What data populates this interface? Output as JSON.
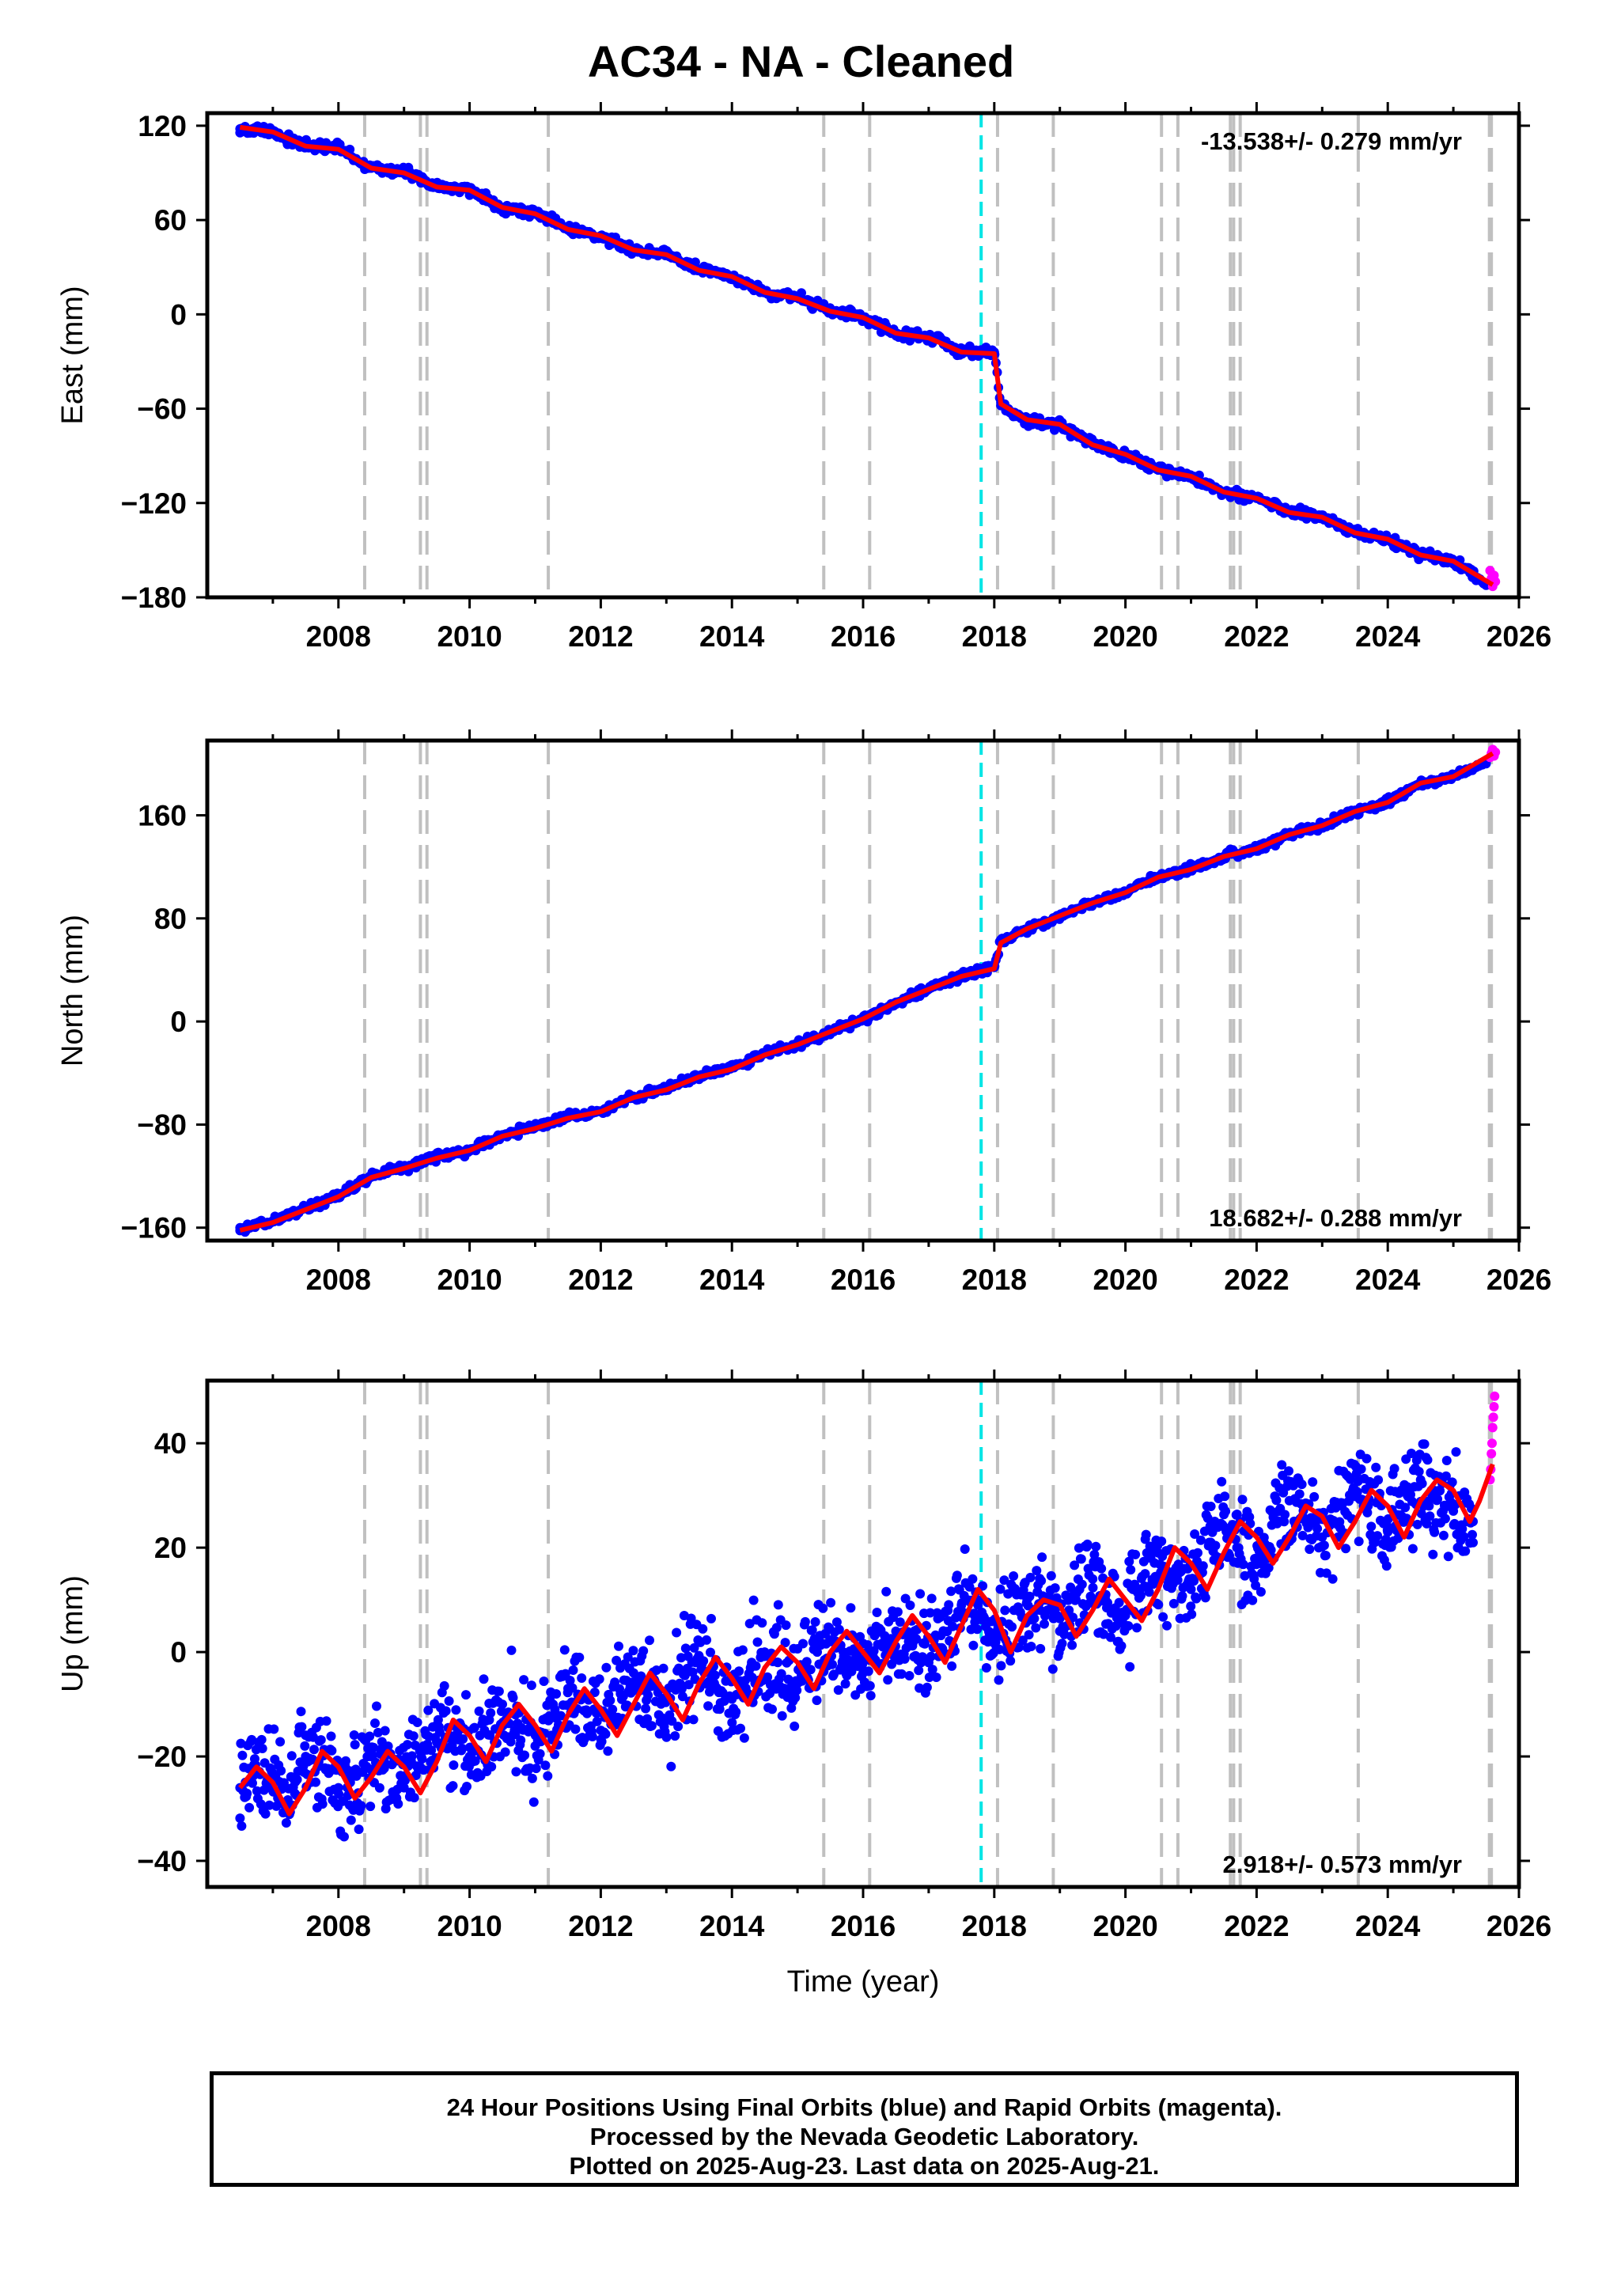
{
  "title": "AC34  - NA - Cleaned",
  "time_label": "Time (year)",
  "footer": [
    "24 Hour Positions Using Final Orbits (blue) and Rapid Orbits (magenta).",
    "Processed by the Nevada Geodetic Laboratory.",
    "Plotted on 2025-Aug-23. Last data on 2025-Aug-21."
  ],
  "colors": {
    "final_orbits": "#0000ff",
    "rapid_orbits": "#ff00ff",
    "model": "#ff0000",
    "equipment_change": "#c0c0c0",
    "earthquake": "#00e5e5"
  },
  "chart_data": [
    {
      "type": "scatter",
      "panel": "east",
      "ylabel": "East (mm)",
      "rate_text": "-13.538+/- 0.279 mm/yr",
      "rate_position": "top-right",
      "xlim": [
        2006.0,
        2026.0
      ],
      "ylim": [
        -180,
        128
      ],
      "xticks": [
        2008,
        2010,
        2012,
        2014,
        2016,
        2018,
        2020,
        2022,
        2024,
        2026
      ],
      "yticks": [
        -180,
        -120,
        -60,
        0,
        60,
        120
      ],
      "ytick_labels": [
        "−180",
        "−120",
        "−60",
        "0",
        "60",
        "120"
      ],
      "series": [
        {
          "role": "final_orbits",
          "x": [
            2006.5,
            2007.0,
            2007.5,
            2008.0,
            2008.5,
            2009.0,
            2009.5,
            2010.0,
            2010.5,
            2011.0,
            2011.5,
            2012.0,
            2012.5,
            2013.0,
            2013.5,
            2014.0,
            2014.5,
            2015.0,
            2015.5,
            2016.0,
            2016.5,
            2017.0,
            2017.5,
            2018.0,
            2018.1,
            2018.5,
            2019.0,
            2019.5,
            2020.0,
            2020.5,
            2021.0,
            2021.5,
            2022.0,
            2022.5,
            2023.0,
            2023.5,
            2024.0,
            2024.5,
            2025.0,
            2025.5
          ],
          "y": [
            118,
            116,
            107,
            106,
            93,
            91,
            81,
            79,
            68,
            65,
            54,
            50,
            41,
            39,
            28,
            24,
            14,
            11,
            2,
            -2,
            -12,
            -14,
            -24,
            -24,
            -58,
            -68,
            -70,
            -83,
            -89,
            -99,
            -103,
            -113,
            -117,
            -126,
            -129,
            -139,
            -143,
            -153,
            -157,
            -171
          ]
        },
        {
          "role": "rapid_orbits",
          "x": [
            2025.56,
            2025.58,
            2025.6,
            2025.62,
            2025.64
          ],
          "y": [
            -163,
            -168,
            -173,
            -166,
            -170
          ]
        },
        {
          "role": "model",
          "x": [
            2006.5,
            2007.0,
            2007.5,
            2008.0,
            2008.5,
            2009.0,
            2009.5,
            2010.0,
            2010.5,
            2011.0,
            2011.5,
            2012.0,
            2012.5,
            2013.0,
            2013.5,
            2014.0,
            2014.5,
            2015.0,
            2015.5,
            2016.0,
            2016.5,
            2017.0,
            2017.5,
            2018.0,
            2018.1,
            2018.5,
            2019.0,
            2019.5,
            2020.0,
            2020.5,
            2021.0,
            2021.5,
            2022.0,
            2022.5,
            2023.0,
            2023.5,
            2024.0,
            2024.5,
            2025.0,
            2025.6
          ],
          "y": [
            119,
            116,
            107,
            105,
            93,
            90,
            81,
            79,
            68,
            64,
            54,
            50,
            41,
            38,
            28,
            24,
            14,
            10,
            2,
            -2,
            -12,
            -15,
            -24,
            -25,
            -57,
            -67,
            -70,
            -83,
            -89,
            -99,
            -103,
            -113,
            -117,
            -126,
            -129,
            -139,
            -143,
            -153,
            -157,
            -172
          ]
        }
      ]
    },
    {
      "type": "scatter",
      "panel": "north",
      "ylabel": "North (mm)",
      "rate_text": "18.682+/- 0.288 mm/yr",
      "rate_position": "bottom-right",
      "xlim": [
        2006.0,
        2026.0
      ],
      "ylim": [
        -170,
        218
      ],
      "xticks": [
        2008,
        2010,
        2012,
        2014,
        2016,
        2018,
        2020,
        2022,
        2024,
        2026
      ],
      "yticks": [
        -160,
        -80,
        0,
        80,
        160
      ],
      "ytick_labels": [
        "−160",
        "−80",
        "0",
        "80",
        "160"
      ],
      "series": [
        {
          "role": "final_orbits",
          "x": [
            2006.5,
            2007.0,
            2007.5,
            2008.0,
            2008.5,
            2009.0,
            2009.5,
            2010.0,
            2010.5,
            2011.0,
            2011.5,
            2012.0,
            2012.5,
            2013.0,
            2013.5,
            2014.0,
            2014.5,
            2015.0,
            2015.5,
            2016.0,
            2016.5,
            2017.0,
            2017.5,
            2018.0,
            2018.1,
            2018.5,
            2019.0,
            2019.5,
            2020.0,
            2020.5,
            2021.0,
            2021.5,
            2022.0,
            2022.5,
            2023.0,
            2023.5,
            2024.0,
            2024.5,
            2025.0,
            2025.5
          ],
          "y": [
            -160,
            -155,
            -145,
            -135,
            -120,
            -113,
            -105,
            -100,
            -88,
            -82,
            -74,
            -70,
            -58,
            -52,
            -42,
            -36,
            -25,
            -18,
            -8,
            2,
            15,
            25,
            35,
            42,
            62,
            72,
            82,
            92,
            100,
            112,
            118,
            128,
            134,
            145,
            152,
            163,
            170,
            185,
            190,
            200
          ]
        },
        {
          "role": "rapid_orbits",
          "x": [
            2025.56,
            2025.58,
            2025.6,
            2025.62,
            2025.64
          ],
          "y": [
            205,
            208,
            211,
            206,
            209
          ]
        },
        {
          "role": "model",
          "x": [
            2006.5,
            2007.0,
            2007.5,
            2008.0,
            2008.5,
            2009.0,
            2009.5,
            2010.0,
            2010.5,
            2011.0,
            2011.5,
            2012.0,
            2012.5,
            2013.0,
            2013.5,
            2014.0,
            2014.5,
            2015.0,
            2015.5,
            2016.0,
            2016.5,
            2017.0,
            2017.5,
            2018.0,
            2018.1,
            2018.5,
            2019.0,
            2019.5,
            2020.0,
            2020.5,
            2021.0,
            2021.5,
            2022.0,
            2022.5,
            2023.0,
            2023.5,
            2024.0,
            2024.5,
            2025.0,
            2025.6
          ],
          "y": [
            -162,
            -156,
            -146,
            -136,
            -121,
            -114,
            -106,
            -100,
            -89,
            -83,
            -75,
            -70,
            -59,
            -53,
            -43,
            -37,
            -26,
            -18,
            -8,
            2,
            15,
            25,
            35,
            41,
            61,
            72,
            82,
            92,
            100,
            112,
            118,
            128,
            134,
            145,
            152,
            163,
            170,
            185,
            190,
            208
          ]
        }
      ]
    },
    {
      "type": "scatter",
      "panel": "up",
      "ylabel": "Up (mm)",
      "xlabel": "Time (year)",
      "rate_text": "2.918+/- 0.573 mm/yr",
      "rate_position": "bottom-right",
      "xlim": [
        2006.0,
        2026.0
      ],
      "ylim": [
        -45,
        52
      ],
      "xticks": [
        2008,
        2010,
        2012,
        2014,
        2016,
        2018,
        2020,
        2022,
        2024,
        2026
      ],
      "yticks": [
        -40,
        -20,
        0,
        20,
        40
      ],
      "ytick_labels": [
        "−40",
        "−20",
        "0",
        "20",
        "40"
      ],
      "series": [
        {
          "role": "final_orbits",
          "x": [
            2006.5,
            2006.7,
            2007.0,
            2007.2,
            2007.5,
            2007.7,
            2008.0,
            2008.3,
            2008.5,
            2008.7,
            2009.0,
            2009.3,
            2009.5,
            2009.7,
            2010.0,
            2010.3,
            2010.5,
            2010.7,
            2011.0,
            2011.3,
            2011.5,
            2011.7,
            2012.0,
            2012.3,
            2012.5,
            2012.7,
            2013.0,
            2013.3,
            2013.5,
            2013.7,
            2014.0,
            2014.3,
            2014.5,
            2014.7,
            2015.0,
            2015.3,
            2015.5,
            2015.7,
            2016.0,
            2016.3,
            2016.5,
            2016.7,
            2017.0,
            2017.3,
            2017.5,
            2017.7,
            2018.0,
            2018.3,
            2018.5,
            2018.7,
            2019.0,
            2019.3,
            2019.5,
            2019.7,
            2020.0,
            2020.3,
            2020.5,
            2020.7,
            2021.0,
            2021.3,
            2021.5,
            2021.7,
            2022.0,
            2022.3,
            2022.5,
            2022.7,
            2023.0,
            2023.3,
            2023.5,
            2023.7,
            2024.0,
            2024.3,
            2024.5,
            2024.7,
            2025.0,
            2025.3
          ],
          "y": [
            -26,
            -22,
            -24,
            -30,
            -20,
            -21,
            -26,
            -27,
            -20,
            -21,
            -26,
            -18,
            -14,
            -16,
            -20,
            -13,
            -10,
            -12,
            -18,
            -11,
            -7,
            -9,
            -15,
            -8,
            -4,
            -7,
            -13,
            -4,
            -1,
            -3,
            -9,
            -2,
            0,
            -2,
            -6,
            0,
            2,
            0,
            -4,
            1,
            4,
            2,
            -2,
            6,
            9,
            7,
            3,
            8,
            10,
            8,
            4,
            12,
            14,
            11,
            7,
            15,
            19,
            15,
            12,
            21,
            24,
            20,
            17,
            25,
            29,
            26,
            22,
            28,
            31,
            28,
            23,
            30,
            33,
            31,
            27,
            25
          ]
        },
        {
          "role": "rapid_orbits",
          "x": [
            2025.56,
            2025.57,
            2025.58,
            2025.59,
            2025.6,
            2025.61,
            2025.62,
            2025.63
          ],
          "y": [
            33,
            35,
            38,
            40,
            43,
            45,
            47,
            49
          ]
        },
        {
          "role": "model",
          "x": [
            2006.5,
            2006.75,
            2007.0,
            2007.25,
            2007.5,
            2007.75,
            2008.0,
            2008.25,
            2008.5,
            2008.75,
            2009.0,
            2009.25,
            2009.5,
            2009.75,
            2010.0,
            2010.25,
            2010.5,
            2010.75,
            2011.0,
            2011.25,
            2011.5,
            2011.75,
            2012.0,
            2012.25,
            2012.5,
            2012.75,
            2013.0,
            2013.25,
            2013.5,
            2013.75,
            2014.0,
            2014.25,
            2014.5,
            2014.75,
            2015.0,
            2015.25,
            2015.5,
            2015.75,
            2016.0,
            2016.25,
            2016.5,
            2016.75,
            2017.0,
            2017.25,
            2017.5,
            2017.75,
            2018.0,
            2018.25,
            2018.5,
            2018.75,
            2019.0,
            2019.25,
            2019.5,
            2019.75,
            2020.0,
            2020.25,
            2020.5,
            2020.75,
            2021.0,
            2021.25,
            2021.5,
            2021.75,
            2022.0,
            2022.25,
            2022.5,
            2022.75,
            2023.0,
            2023.25,
            2023.5,
            2023.75,
            2024.0,
            2024.25,
            2024.5,
            2024.75,
            2025.0,
            2025.25,
            2025.4,
            2025.6
          ],
          "y": [
            -26,
            -22,
            -25,
            -31,
            -26,
            -19,
            -22,
            -28,
            -24,
            -19,
            -22,
            -27,
            -21,
            -13,
            -16,
            -21,
            -14,
            -10,
            -14,
            -19,
            -12,
            -7,
            -11,
            -16,
            -10,
            -4,
            -8,
            -13,
            -6,
            -1,
            -5,
            -10,
            -3,
            1,
            -2,
            -7,
            0,
            4,
            0,
            -4,
            2,
            7,
            3,
            -2,
            5,
            12,
            8,
            0,
            7,
            10,
            9,
            3,
            8,
            14,
            10,
            6,
            12,
            20,
            17,
            12,
            19,
            25,
            22,
            17,
            22,
            28,
            26,
            20,
            25,
            31,
            28,
            22,
            29,
            33,
            31,
            25,
            29,
            36
          ]
        }
      ]
    }
  ],
  "event_lines": {
    "equipment_change": [
      2008.4,
      2009.25,
      2009.35,
      2011.2,
      2015.4,
      2016.1,
      2018.05,
      2018.9,
      2020.55,
      2020.8,
      2021.6,
      2021.65,
      2021.75,
      2023.55,
      2025.55,
      2025.58
    ],
    "earthquake": [
      2017.8
    ]
  }
}
